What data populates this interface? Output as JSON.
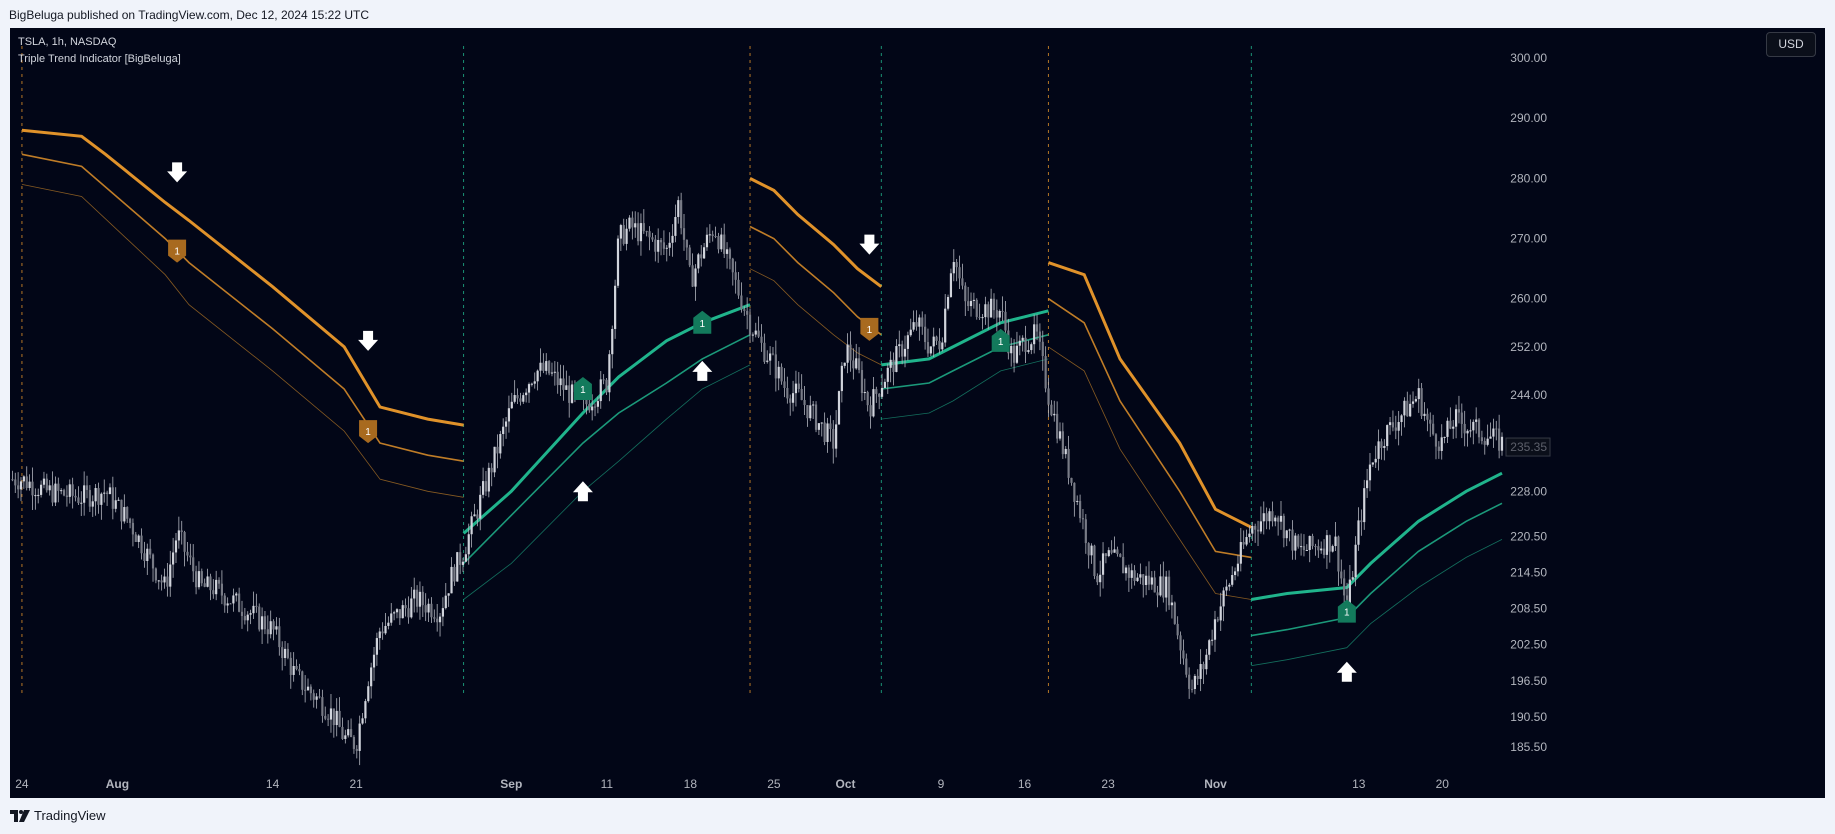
{
  "header": {
    "published_text": "BigBeluga published on TradingView.com, Dec 12, 2024 15:22 UTC"
  },
  "legend": {
    "symbol_line": "TSLA, 1h, NASDAQ",
    "indicator_line": "Triple Trend Indicator [BigBeluga]"
  },
  "controls": {
    "currency_label": "USD"
  },
  "footer": {
    "brand_label": "TradingView"
  },
  "colors": {
    "background": "#020617",
    "bearish": "#e0922a",
    "bullish": "#20b48c",
    "candle": "#b2b5be",
    "signal_bear_marker": "#a86a1f",
    "signal_bull_marker": "#137a5c",
    "arrow": "#ffffff"
  },
  "chart_data": {
    "type": "candlestick",
    "title": "TSLA, 1h, NASDAQ",
    "subtitle": "Triple Trend Indicator [BigBeluga]",
    "ylim": [
      182,
      305
    ],
    "y_ticks": [
      "300.00",
      "290.00",
      "280.00",
      "270.00",
      "260.00",
      "252.00",
      "244.00",
      "228.00",
      "220.50",
      "214.50",
      "208.50",
      "202.50",
      "196.50",
      "190.50",
      "185.50"
    ],
    "y_tick_values": [
      300,
      290,
      280,
      270,
      260,
      252,
      244,
      228,
      220.5,
      214.5,
      208.5,
      202.5,
      196.5,
      190.5,
      185.5
    ],
    "last_price_label": "235.35",
    "last_price": 235.35,
    "x_range": [
      "Jul 23",
      "Nov 25"
    ],
    "x_ticks": [
      {
        "label": "24",
        "date": "Jul 24",
        "bold": false
      },
      {
        "label": "Aug",
        "date": "Aug 01",
        "bold": true
      },
      {
        "label": "14",
        "date": "Aug 14",
        "bold": false
      },
      {
        "label": "21",
        "date": "Aug 21",
        "bold": false
      },
      {
        "label": "Sep",
        "date": "Sep 03",
        "bold": true
      },
      {
        "label": "11",
        "date": "Sep 11",
        "bold": false
      },
      {
        "label": "18",
        "date": "Sep 18",
        "bold": false
      },
      {
        "label": "25",
        "date": "Sep 25",
        "bold": false
      },
      {
        "label": "Oct",
        "date": "Oct 01",
        "bold": true
      },
      {
        "label": "9",
        "date": "Oct 09",
        "bold": false
      },
      {
        "label": "16",
        "date": "Oct 16",
        "bold": false
      },
      {
        "label": "23",
        "date": "Oct 23",
        "bold": false
      },
      {
        "label": "Nov",
        "date": "Nov 01",
        "bold": true
      },
      {
        "label": "13",
        "date": "Nov 13",
        "bold": false
      },
      {
        "label": "20",
        "date": "Nov 20",
        "bold": false
      }
    ],
    "price_path": [
      [
        "Jul 23",
        230
      ],
      [
        "Jul 24",
        230
      ],
      [
        "Jul 26",
        228
      ],
      [
        "Jul 29",
        227
      ],
      [
        "Jul 31",
        228
      ],
      [
        "Aug 02",
        223
      ],
      [
        "Aug 05",
        212
      ],
      [
        "Aug 06",
        221
      ],
      [
        "Aug 08",
        212
      ],
      [
        "Aug 09",
        212
      ],
      [
        "Aug 12",
        208
      ],
      [
        "Aug 14",
        205
      ],
      [
        "Aug 16",
        197
      ],
      [
        "Aug 19",
        191
      ],
      [
        "Aug 20",
        187
      ],
      [
        "Aug 21",
        186
      ],
      [
        "Aug 22",
        197
      ],
      [
        "Aug 23",
        205
      ],
      [
        "Aug 26",
        210
      ],
      [
        "Aug 27",
        209
      ],
      [
        "Aug 28",
        208
      ],
      [
        "Aug 29",
        214
      ],
      [
        "Aug 30",
        218
      ],
      [
        "Sep 03",
        242
      ],
      [
        "Sep 05",
        248
      ],
      [
        "Sep 06",
        248
      ],
      [
        "Sep 09",
        242
      ],
      [
        "Sep 10",
        244
      ],
      [
        "Sep 11",
        246
      ],
      [
        "Sep 12",
        270
      ],
      [
        "Sep 13",
        272
      ],
      [
        "Sep 16",
        268
      ],
      [
        "Sep 17",
        276
      ],
      [
        "Sep 18",
        263
      ],
      [
        "Sep 19",
        268
      ],
      [
        "Sep 20",
        272
      ],
      [
        "Sep 23",
        256
      ],
      [
        "Sep 24",
        252
      ],
      [
        "Sep 25",
        249
      ],
      [
        "Sep 26",
        245
      ],
      [
        "Sep 27",
        244
      ],
      [
        "Sep 30",
        236
      ],
      [
        "Oct 01",
        252
      ],
      [
        "Oct 02",
        248
      ],
      [
        "Oct 03",
        242
      ],
      [
        "Oct 04",
        246
      ],
      [
        "Oct 07",
        256
      ],
      [
        "Oct 08",
        252
      ],
      [
        "Oct 09",
        253
      ],
      [
        "Oct 10",
        268
      ],
      [
        "Oct 11",
        259
      ],
      [
        "Oct 14",
        258
      ],
      [
        "Oct 15",
        250
      ],
      [
        "Oct 16",
        253
      ],
      [
        "Oct 17",
        254
      ],
      [
        "Oct 18",
        244
      ],
      [
        "Oct 21",
        222
      ],
      [
        "Oct 22",
        214
      ],
      [
        "Oct 23",
        217
      ],
      [
        "Oct 24",
        216
      ],
      [
        "Oct 25",
        214
      ],
      [
        "Oct 28",
        212
      ],
      [
        "Oct 29",
        203
      ],
      [
        "Oct 30",
        195
      ],
      [
        "Oct 31",
        199
      ],
      [
        "Nov 01",
        207
      ],
      [
        "Nov 04",
        222
      ],
      [
        "Nov 06",
        225
      ],
      [
        "Nov 07",
        221
      ],
      [
        "Nov 08",
        218
      ],
      [
        "Nov 11",
        220
      ],
      [
        "Nov 12",
        208
      ],
      [
        "Nov 13",
        222
      ],
      [
        "Nov 14",
        233
      ],
      [
        "Nov 15",
        237
      ],
      [
        "Nov 18",
        244
      ],
      [
        "Nov 19",
        238
      ],
      [
        "Nov 20",
        236
      ],
      [
        "Nov 21",
        240
      ],
      [
        "Nov 22",
        239
      ],
      [
        "Nov 25",
        236
      ]
    ],
    "trend_segments": [
      {
        "direction": "bear",
        "start": "Jul 24",
        "end": "Aug 30",
        "bands": [
          [
            [
              "Jul 24",
              288
            ],
            [
              "Jul 29",
              287
            ],
            [
              "Jul 31",
              284
            ],
            [
              "Aug 05",
              276
            ],
            [
              "Aug 07",
              273
            ],
            [
              "Aug 14",
              262
            ],
            [
              "Aug 20",
              252
            ],
            [
              "Aug 23",
              242
            ],
            [
              "Aug 27",
              240
            ],
            [
              "Aug 30",
              239
            ]
          ],
          [
            [
              "Jul 24",
              284
            ],
            [
              "Jul 29",
              282
            ],
            [
              "Aug 05",
              270
            ],
            [
              "Aug 07",
              266
            ],
            [
              "Aug 14",
              255
            ],
            [
              "Aug 20",
              245
            ],
            [
              "Aug 23",
              236
            ],
            [
              "Aug 27",
              234
            ],
            [
              "Aug 30",
              233
            ]
          ],
          [
            [
              "Jul 24",
              279
            ],
            [
              "Jul 29",
              277
            ],
            [
              "Aug 05",
              264
            ],
            [
              "Aug 07",
              259
            ],
            [
              "Aug 14",
              248
            ],
            [
              "Aug 20",
              238
            ],
            [
              "Aug 23",
              230
            ],
            [
              "Aug 27",
              228
            ],
            [
              "Aug 30",
              227
            ]
          ]
        ]
      },
      {
        "direction": "bull",
        "start": "Aug 30",
        "end": "Sep 23",
        "bands": [
          [
            [
              "Aug 30",
              210
            ],
            [
              "Sep 03",
              216
            ],
            [
              "Sep 09",
              228
            ],
            [
              "Sep 12",
              233
            ],
            [
              "Sep 16",
              240
            ],
            [
              "Sep 19",
              245
            ],
            [
              "Sep 23",
              249
            ]
          ],
          [
            [
              "Aug 30",
              216
            ],
            [
              "Sep 03",
              224
            ],
            [
              "Sep 09",
              236
            ],
            [
              "Sep 12",
              241
            ],
            [
              "Sep 16",
              246
            ],
            [
              "Sep 19",
              250
            ],
            [
              "Sep 23",
              254
            ]
          ],
          [
            [
              "Aug 30",
              221
            ],
            [
              "Sep 03",
              228
            ],
            [
              "Sep 09",
              241
            ],
            [
              "Sep 12",
              247
            ],
            [
              "Sep 16",
              253
            ],
            [
              "Sep 19",
              256
            ],
            [
              "Sep 23",
              259
            ]
          ]
        ]
      },
      {
        "direction": "bear",
        "start": "Sep 23",
        "end": "Oct 04",
        "bands": [
          [
            [
              "Sep 23",
              280
            ],
            [
              "Sep 25",
              278
            ],
            [
              "Sep 27",
              274
            ],
            [
              "Sep 30",
              269
            ],
            [
              "Oct 02",
              265
            ],
            [
              "Oct 04",
              262
            ]
          ],
          [
            [
              "Sep 23",
              272
            ],
            [
              "Sep 25",
              270
            ],
            [
              "Sep 27",
              266
            ],
            [
              "Sep 30",
              261
            ],
            [
              "Oct 02",
              257
            ],
            [
              "Oct 04",
              254
            ]
          ],
          [
            [
              "Sep 23",
              265
            ],
            [
              "Sep 25",
              263
            ],
            [
              "Sep 27",
              259
            ],
            [
              "Sep 30",
              254
            ],
            [
              "Oct 02",
              251
            ],
            [
              "Oct 04",
              249
            ]
          ]
        ]
      },
      {
        "direction": "bull",
        "start": "Oct 04",
        "end": "Oct 18",
        "bands": [
          [
            [
              "Oct 04",
              240
            ],
            [
              "Oct 08",
              241
            ],
            [
              "Oct 10",
              243
            ],
            [
              "Oct 14",
              248
            ],
            [
              "Oct 16",
              249
            ],
            [
              "Oct 18",
              250
            ]
          ],
          [
            [
              "Oct 04",
              245
            ],
            [
              "Oct 08",
              246
            ],
            [
              "Oct 10",
              248
            ],
            [
              "Oct 14",
              252
            ],
            [
              "Oct 16",
              253
            ],
            [
              "Oct 18",
              254
            ]
          ],
          [
            [
              "Oct 04",
              249
            ],
            [
              "Oct 08",
              250
            ],
            [
              "Oct 10",
              252
            ],
            [
              "Oct 14",
              256
            ],
            [
              "Oct 16",
              257
            ],
            [
              "Oct 18",
              258
            ]
          ]
        ]
      },
      {
        "direction": "bear",
        "start": "Oct 18",
        "end": "Nov 04",
        "bands": [
          [
            [
              "Oct 18",
              266
            ],
            [
              "Oct 21",
              264
            ],
            [
              "Oct 24",
              250
            ],
            [
              "Oct 29",
              236
            ],
            [
              "Nov 01",
              225
            ],
            [
              "Nov 04",
              222
            ]
          ],
          [
            [
              "Oct 18",
              260
            ],
            [
              "Oct 21",
              256
            ],
            [
              "Oct 24",
              243
            ],
            [
              "Oct 29",
              228
            ],
            [
              "Nov 01",
              218
            ],
            [
              "Nov 04",
              217
            ]
          ],
          [
            [
              "Oct 18",
              252
            ],
            [
              "Oct 21",
              248
            ],
            [
              "Oct 24",
              235
            ],
            [
              "Oct 29",
              220
            ],
            [
              "Nov 01",
              211
            ],
            [
              "Nov 04",
              210
            ]
          ]
        ]
      },
      {
        "direction": "bull",
        "start": "Nov 04",
        "end": "Nov 25",
        "bands": [
          [
            [
              "Nov 04",
              199
            ],
            [
              "Nov 07",
              200
            ],
            [
              "Nov 12",
              202
            ],
            [
              "Nov 14",
              206
            ],
            [
              "Nov 18",
              212
            ],
            [
              "Nov 22",
              217
            ],
            [
              "Nov 25",
              220
            ]
          ],
          [
            [
              "Nov 04",
              204
            ],
            [
              "Nov 07",
              205
            ],
            [
              "Nov 12",
              207
            ],
            [
              "Nov 14",
              211
            ],
            [
              "Nov 18",
              218
            ],
            [
              "Nov 22",
              223
            ],
            [
              "Nov 25",
              226
            ]
          ],
          [
            [
              "Nov 04",
              210
            ],
            [
              "Nov 07",
              211
            ],
            [
              "Nov 12",
              212
            ],
            [
              "Nov 14",
              216
            ],
            [
              "Nov 18",
              223
            ],
            [
              "Nov 22",
              228
            ],
            [
              "Nov 25",
              231
            ]
          ]
        ]
      }
    ],
    "signal_markers": [
      {
        "direction": "bear",
        "date": "Aug 06",
        "price": 268,
        "label": "1"
      },
      {
        "direction": "bear",
        "date": "Aug 22",
        "price": 238,
        "label": "1"
      },
      {
        "direction": "bull",
        "date": "Sep 09",
        "price": 245,
        "label": "1"
      },
      {
        "direction": "bull",
        "date": "Sep 19",
        "price": 256,
        "label": "1"
      },
      {
        "direction": "bear",
        "date": "Oct 03",
        "price": 255,
        "label": "1"
      },
      {
        "direction": "bull",
        "date": "Oct 14",
        "price": 253,
        "label": "1"
      },
      {
        "direction": "bull",
        "date": "Nov 12",
        "price": 208,
        "label": "1"
      }
    ],
    "trend_arrows": [
      {
        "direction": "down",
        "date": "Aug 06",
        "price": 281
      },
      {
        "direction": "down",
        "date": "Aug 22",
        "price": 253
      },
      {
        "direction": "up",
        "date": "Sep 09",
        "price": 228
      },
      {
        "direction": "up",
        "date": "Sep 19",
        "price": 248
      },
      {
        "direction": "down",
        "date": "Oct 03",
        "price": 269
      },
      {
        "direction": "up",
        "date": "Nov 12",
        "price": 198
      }
    ],
    "trend_change_dates": [
      {
        "date": "Jul 24",
        "direction": "bear"
      },
      {
        "date": "Aug 30",
        "direction": "bull"
      },
      {
        "date": "Sep 23",
        "direction": "bear"
      },
      {
        "date": "Oct 04",
        "direction": "bull"
      },
      {
        "date": "Oct 18",
        "direction": "bear"
      },
      {
        "date": "Nov 04",
        "direction": "bull"
      }
    ]
  }
}
